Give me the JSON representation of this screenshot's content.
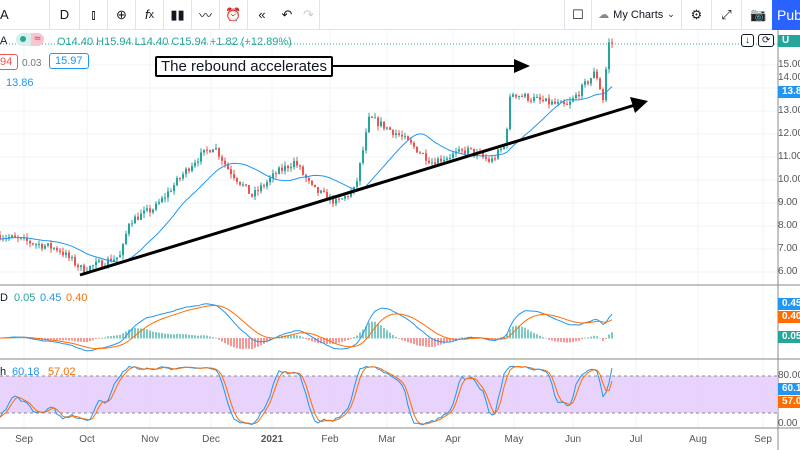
{
  "toolbar": {
    "symbol_partial": "A",
    "interval": "D",
    "my_charts": "My Charts",
    "publish": "Publish",
    "icons": [
      "candles-icon",
      "add-compare-icon",
      "indicators-icon",
      "templates-icon",
      "financials-icon",
      "alert-icon",
      "replay-icon",
      "undo-icon",
      "redo-icon",
      "rectangle-icon",
      "cloud-icon",
      "chevron-down-icon",
      "gear-icon",
      "fullscreen-icon",
      "camera-icon"
    ]
  },
  "legend": {
    "symbol": "A",
    "ohlc": "O14.40 H15.94 L14.40 C15.94 +1.82 (+12.89%)",
    "sell": "94",
    "spread": "0.03",
    "buy": "15.97",
    "ma_value": "13.86"
  },
  "annotation": {
    "text": "The rebound accelerates"
  },
  "price_axis": {
    "ticks": [
      "15.00",
      "14.00",
      "13.00",
      "12.00",
      "11.00",
      "10.00",
      "9.00",
      "8.00",
      "7.00",
      "6.00"
    ],
    "last_price_tag": "13.86",
    "top_tag": "U"
  },
  "macd": {
    "label": "D",
    "hist": "0.05",
    "macd": "0.45",
    "signal": "0.40",
    "tags": [
      "0.45",
      "0.40",
      "0.05"
    ]
  },
  "stoch": {
    "label": "h",
    "k": "60.18",
    "d": "57.02",
    "ticks": [
      "80.00",
      "0.00"
    ],
    "tags": [
      "60.18",
      "57.02"
    ]
  },
  "time_axis": [
    "Sep",
    "Oct",
    "Nov",
    "Dec",
    "2021",
    "Feb",
    "Mar",
    "Apr",
    "May",
    "Jun",
    "Jul",
    "Aug",
    "Sep"
  ],
  "colors": {
    "up": "#26a69a",
    "down": "#ef5350",
    "ma": "#2196f3",
    "macd": "#2196f3",
    "signal": "#ff6d00",
    "stoch_band": "#e1c8fa",
    "publish": "#2962ff"
  },
  "chart_data": {
    "type": "candlestick",
    "closes": [
      [
        "2020-08-20",
        7.6
      ],
      [
        "2020-09-18",
        7.0
      ],
      [
        "2020-09-30",
        6.1
      ],
      [
        "2020-10-19",
        6.7
      ],
      [
        "2020-10-23",
        8.2
      ],
      [
        "2020-11-05",
        8.8
      ],
      [
        "2020-11-24",
        10.8
      ],
      [
        "2020-12-04",
        11.5
      ],
      [
        "2020-12-11",
        10.5
      ],
      [
        "2020-12-23",
        9.3
      ],
      [
        "2021-01-04",
        10.3
      ],
      [
        "2021-01-13",
        10.8
      ],
      [
        "2021-01-22",
        9.6
      ],
      [
        "2021-02-03",
        9.0
      ],
      [
        "2021-02-12",
        9.6
      ],
      [
        "2021-02-19",
        12.7
      ],
      [
        "2021-03-05",
        12.0
      ],
      [
        "2021-03-22",
        10.8
      ],
      [
        "2021-04-09",
        11.3
      ],
      [
        "2021-04-20",
        10.8
      ],
      [
        "2021-04-27",
        11.5
      ],
      [
        "2021-04-30",
        13.8
      ],
      [
        "2021-05-16",
        13.4
      ],
      [
        "2021-05-28",
        13.2
      ],
      [
        "2021-06-11",
        14.7
      ],
      [
        "2021-06-15",
        13.4
      ],
      [
        "2021-06-17",
        15.94
      ]
    ],
    "ylim": [
      5.5,
      16.5
    ]
  }
}
